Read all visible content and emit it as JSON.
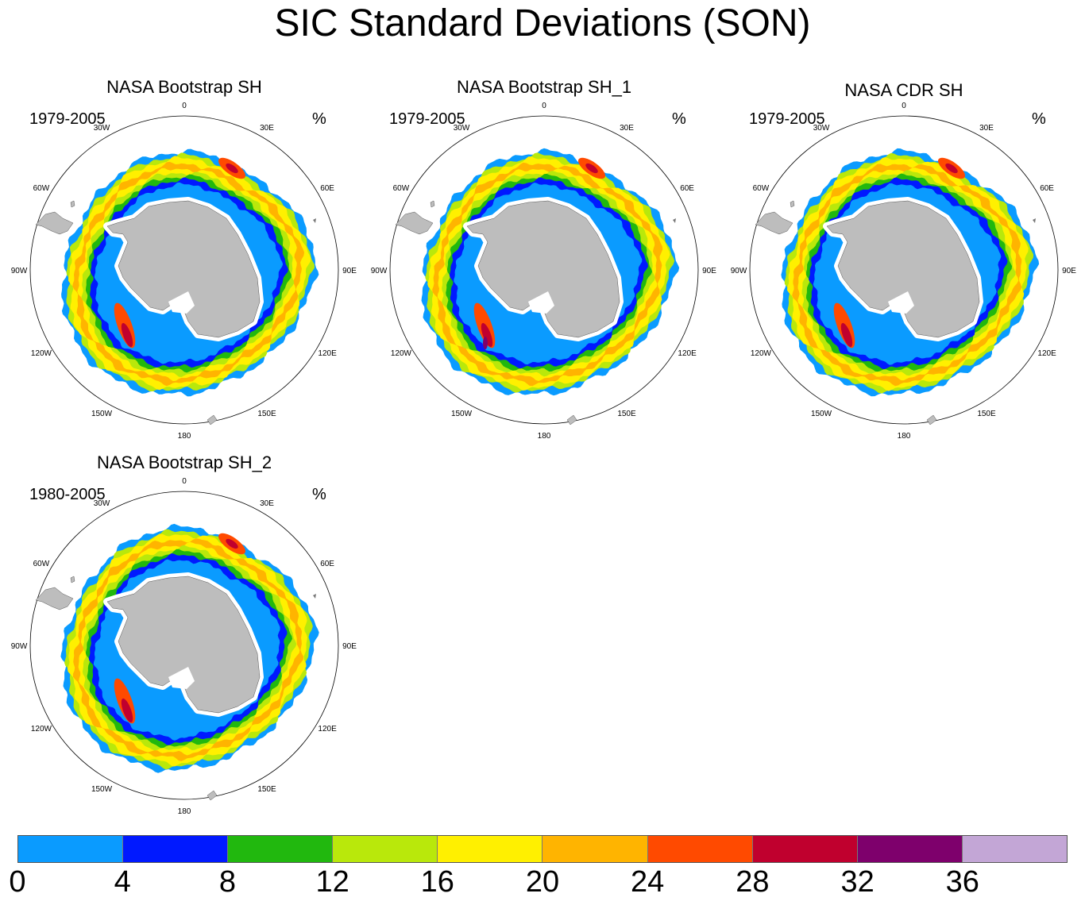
{
  "title": "SIC Standard Deviations (SON)",
  "unit": "%",
  "panels": [
    {
      "name": "NASA Bootstrap SH",
      "period": "1979-2005"
    },
    {
      "name": "NASA Bootstrap SH_1",
      "period": "1979-2005"
    },
    {
      "name": "NASA CDR SH",
      "period": "1979-2005"
    },
    {
      "name": "NASA Bootstrap SH_2",
      "period": "1980-2005"
    }
  ],
  "longitude_labels": [
    "0",
    "30E",
    "60E",
    "90E",
    "120E",
    "150E",
    "180",
    "150W",
    "120W",
    "90W",
    "60W",
    "30W"
  ],
  "colorbar": {
    "colors": [
      "#0a9bff",
      "#0019ff",
      "#21b80e",
      "#b9e80b",
      "#fff000",
      "#ffb400",
      "#ff4a00",
      "#c0002e",
      "#7e006c",
      "#c3a6d6"
    ],
    "tick_labels": [
      "0",
      "4",
      "8",
      "12",
      "16",
      "20",
      "24",
      "28",
      "32",
      "36"
    ]
  },
  "colors": {
    "land": "#bdbdbd",
    "ocean": "#ffffff"
  }
}
